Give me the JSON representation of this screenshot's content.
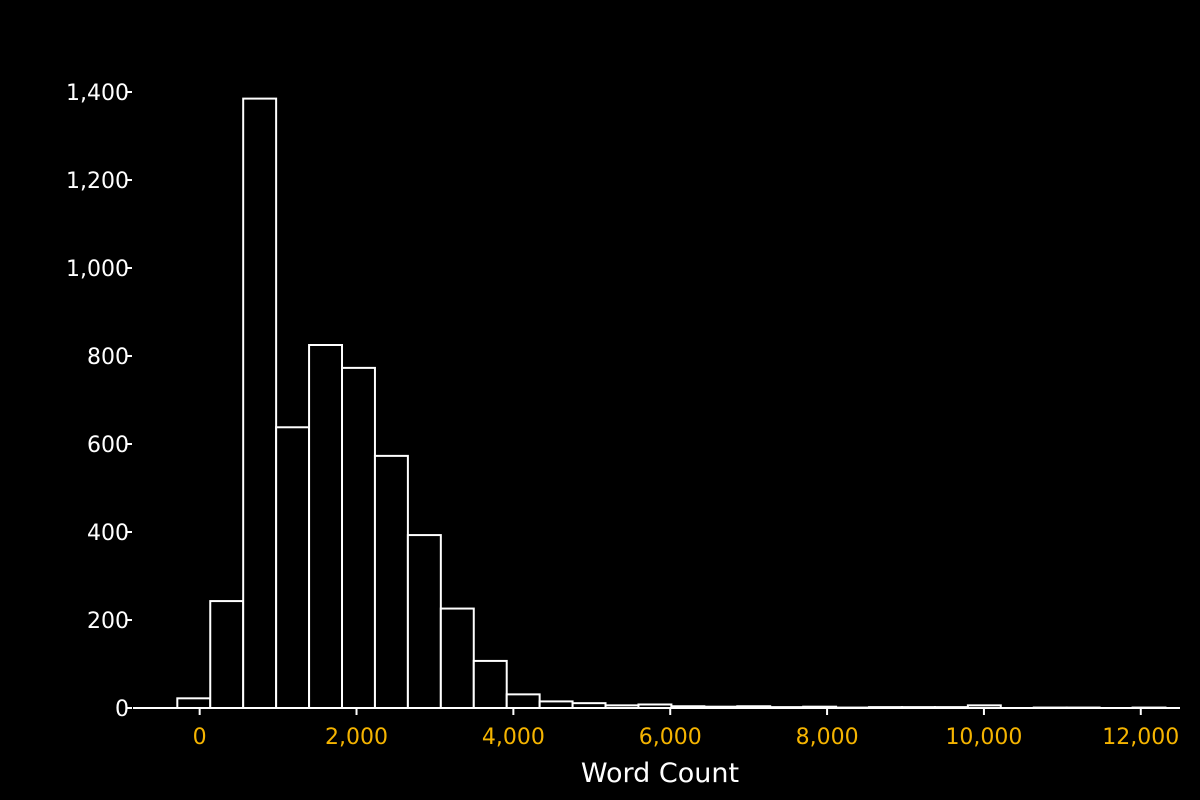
{
  "chart_data": {
    "type": "bar",
    "xlabel": "Word Count",
    "ylabel": "",
    "xlim": [
      -850,
      12500
    ],
    "ylim": [
      0,
      1400
    ],
    "x_ticks": [
      0,
      2000,
      4000,
      6000,
      8000,
      10000,
      12000
    ],
    "x_tick_labels": [
      "0",
      "2,000",
      "4,000",
      "6,000",
      "8,000",
      "10,000",
      "12,000"
    ],
    "y_ticks": [
      0,
      200,
      400,
      600,
      800,
      1000,
      1200,
      1400
    ],
    "y_tick_labels": [
      "0",
      "200",
      "400",
      "600",
      "800",
      "1,000",
      "1,200",
      "1,400"
    ],
    "bin_width": 420,
    "bins": [
      {
        "x0": -285,
        "x1": 135,
        "count": 22
      },
      {
        "x0": 135,
        "x1": 555,
        "count": 243
      },
      {
        "x0": 555,
        "x1": 975,
        "count": 1385
      },
      {
        "x0": 975,
        "x1": 1395,
        "count": 638
      },
      {
        "x0": 1395,
        "x1": 1815,
        "count": 825
      },
      {
        "x0": 1815,
        "x1": 2235,
        "count": 773
      },
      {
        "x0": 2235,
        "x1": 2655,
        "count": 573
      },
      {
        "x0": 2655,
        "x1": 3075,
        "count": 393
      },
      {
        "x0": 3075,
        "x1": 3495,
        "count": 226
      },
      {
        "x0": 3495,
        "x1": 3915,
        "count": 107
      },
      {
        "x0": 3915,
        "x1": 4335,
        "count": 31
      },
      {
        "x0": 4335,
        "x1": 4755,
        "count": 15
      },
      {
        "x0": 4755,
        "x1": 5175,
        "count": 11
      },
      {
        "x0": 5175,
        "x1": 5595,
        "count": 6
      },
      {
        "x0": 5595,
        "x1": 6015,
        "count": 8
      },
      {
        "x0": 6015,
        "x1": 6435,
        "count": 4
      },
      {
        "x0": 6435,
        "x1": 6855,
        "count": 3
      },
      {
        "x0": 6855,
        "x1": 7275,
        "count": 4
      },
      {
        "x0": 7275,
        "x1": 7695,
        "count": 2
      },
      {
        "x0": 7695,
        "x1": 8115,
        "count": 3
      },
      {
        "x0": 8115,
        "x1": 8535,
        "count": 1
      },
      {
        "x0": 8535,
        "x1": 8955,
        "count": 2
      },
      {
        "x0": 8955,
        "x1": 9375,
        "count": 2
      },
      {
        "x0": 9375,
        "x1": 9795,
        "count": 2
      },
      {
        "x0": 9795,
        "x1": 10215,
        "count": 6
      },
      {
        "x0": 10215,
        "x1": 10635,
        "count": 0
      },
      {
        "x0": 10635,
        "x1": 11055,
        "count": 1
      },
      {
        "x0": 11055,
        "x1": 11475,
        "count": 1
      },
      {
        "x0": 11475,
        "x1": 11895,
        "count": 0
      },
      {
        "x0": 11895,
        "x1": 12315,
        "count": 1
      }
    ],
    "grid": false,
    "legend": "none",
    "colors": {
      "background": "#000000",
      "bar_fill": "#000000",
      "bar_stroke": "#ffffff",
      "axis": "#ffffff",
      "y_tick_text": "#ffffff",
      "x_tick_text": "#f5b400"
    }
  }
}
